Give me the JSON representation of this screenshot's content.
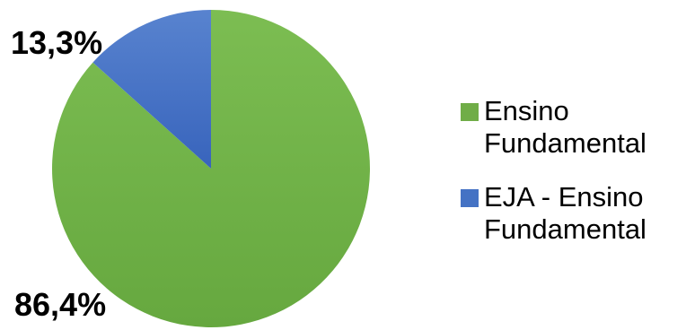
{
  "chart_data": {
    "type": "pie",
    "title": "",
    "slices": [
      {
        "label": "Ensino Fundamental",
        "value": 86.4,
        "value_label": "86,4%",
        "color": "#70ad47"
      },
      {
        "label": "EJA - Ensino Fundamental",
        "value": 13.3,
        "value_label": "13,3%",
        "color": "#4472c4"
      }
    ],
    "legend_position": "right"
  },
  "legend": {
    "items": [
      {
        "line1": "Ensino",
        "line2": "Fundamental"
      },
      {
        "line1": "EJA - Ensino",
        "line2": "Fundamental"
      }
    ]
  }
}
